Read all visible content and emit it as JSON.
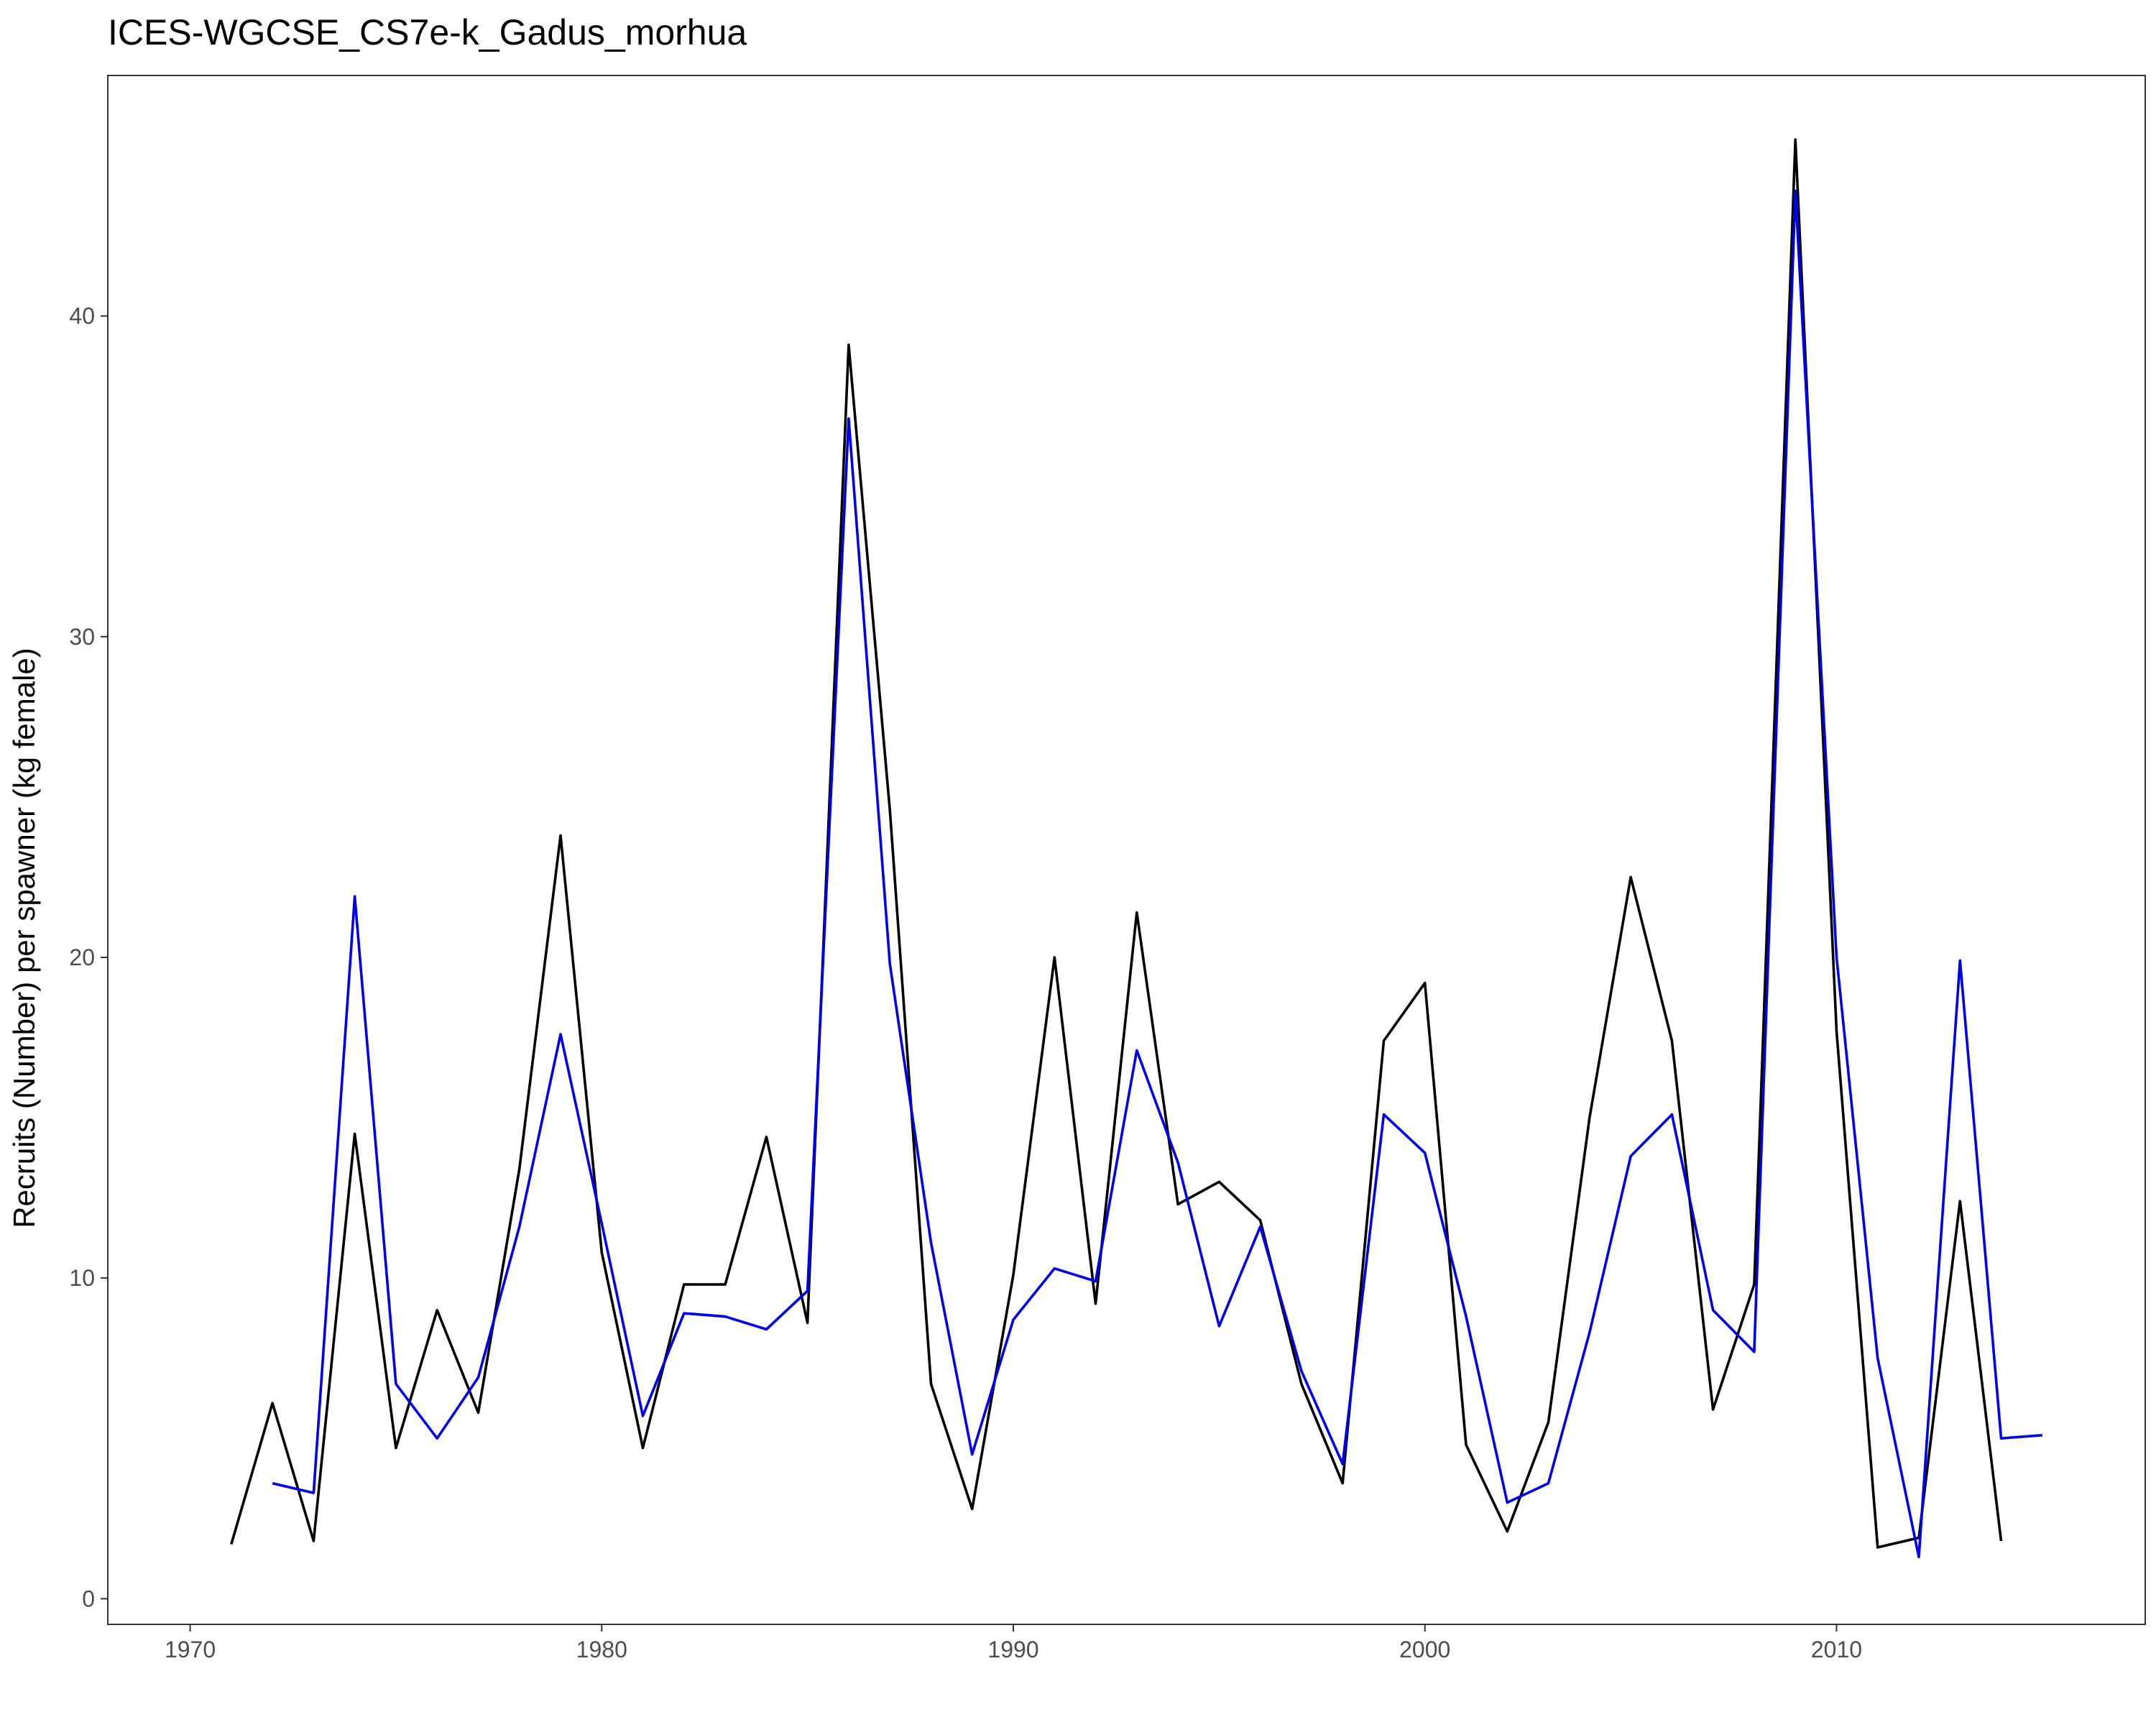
{
  "chart_data": {
    "type": "line",
    "title": "ICES-WGCSE_CS7e-k_Gadus_morhua",
    "xlabel": "",
    "ylabel": "Recruits (Number) per spawner (kg female)",
    "xlim": [
      1968,
      2017.5
    ],
    "ylim": [
      -0.8,
      47.5
    ],
    "x_ticks": [
      1970,
      1980,
      1990,
      2000,
      2010
    ],
    "y_ticks": [
      0,
      10,
      20,
      30,
      40
    ],
    "grid": false,
    "legend": "none",
    "series": [
      {
        "color": "#000000",
        "points": [
          [
            1971,
            1.7
          ],
          [
            1972,
            6.1
          ],
          [
            1973,
            1.8
          ],
          [
            1974,
            14.5
          ],
          [
            1975,
            4.7
          ],
          [
            1976,
            9.0
          ],
          [
            1977,
            5.8
          ],
          [
            1978,
            13.4
          ],
          [
            1979,
            23.8
          ],
          [
            1980,
            10.8
          ],
          [
            1981,
            4.7
          ],
          [
            1982,
            9.8
          ],
          [
            1983,
            9.8
          ],
          [
            1984,
            14.4
          ],
          [
            1985,
            8.6
          ],
          [
            1986,
            39.1
          ],
          [
            1987,
            24.6
          ],
          [
            1988,
            6.7
          ],
          [
            1989,
            2.8
          ],
          [
            1990,
            10.1
          ],
          [
            1991,
            20.0
          ],
          [
            1992,
            9.2
          ],
          [
            1993,
            21.4
          ],
          [
            1994,
            12.3
          ],
          [
            1995,
            13.0
          ],
          [
            1996,
            11.8
          ],
          [
            1997,
            6.7
          ],
          [
            1998,
            3.6
          ],
          [
            1999,
            17.4
          ],
          [
            2000,
            19.2
          ],
          [
            2001,
            4.8
          ],
          [
            2002,
            2.1
          ],
          [
            2003,
            5.5
          ],
          [
            2004,
            15.0
          ],
          [
            2005,
            22.5
          ],
          [
            2006,
            17.4
          ],
          [
            2007,
            5.9
          ],
          [
            2008,
            9.8
          ],
          [
            2009,
            45.5
          ],
          [
            2010,
            17.7
          ],
          [
            2011,
            1.6
          ],
          [
            2012,
            1.9
          ],
          [
            2013,
            12.4
          ],
          [
            2014,
            1.8
          ]
        ]
      },
      {
        "color": "#0000ee",
        "points": [
          [
            1972,
            3.6
          ],
          [
            1973,
            3.3
          ],
          [
            1974,
            21.9
          ],
          [
            1975,
            6.7
          ],
          [
            1976,
            5.0
          ],
          [
            1977,
            6.9
          ],
          [
            1978,
            11.6
          ],
          [
            1979,
            17.6
          ],
          [
            1980,
            11.7
          ],
          [
            1981,
            5.7
          ],
          [
            1982,
            8.9
          ],
          [
            1983,
            8.8
          ],
          [
            1984,
            8.4
          ],
          [
            1985,
            9.6
          ],
          [
            1986,
            36.8
          ],
          [
            1987,
            19.8
          ],
          [
            1988,
            11.1
          ],
          [
            1989,
            4.5
          ],
          [
            1990,
            8.7
          ],
          [
            1991,
            10.3
          ],
          [
            1992,
            9.9
          ],
          [
            1993,
            17.1
          ],
          [
            1994,
            13.6
          ],
          [
            1995,
            8.5
          ],
          [
            1996,
            11.6
          ],
          [
            1997,
            7.1
          ],
          [
            1998,
            4.2
          ],
          [
            1999,
            15.1
          ],
          [
            2000,
            13.9
          ],
          [
            2001,
            8.8
          ],
          [
            2002,
            3.0
          ],
          [
            2003,
            3.6
          ],
          [
            2004,
            8.3
          ],
          [
            2005,
            13.8
          ],
          [
            2006,
            15.1
          ],
          [
            2007,
            9.0
          ],
          [
            2008,
            7.7
          ],
          [
            2009,
            43.9
          ],
          [
            2010,
            20.0
          ],
          [
            2011,
            7.5
          ],
          [
            2012,
            1.3
          ],
          [
            2013,
            19.9
          ],
          [
            2014,
            5.0
          ],
          [
            2015,
            5.1
          ]
        ]
      }
    ]
  }
}
